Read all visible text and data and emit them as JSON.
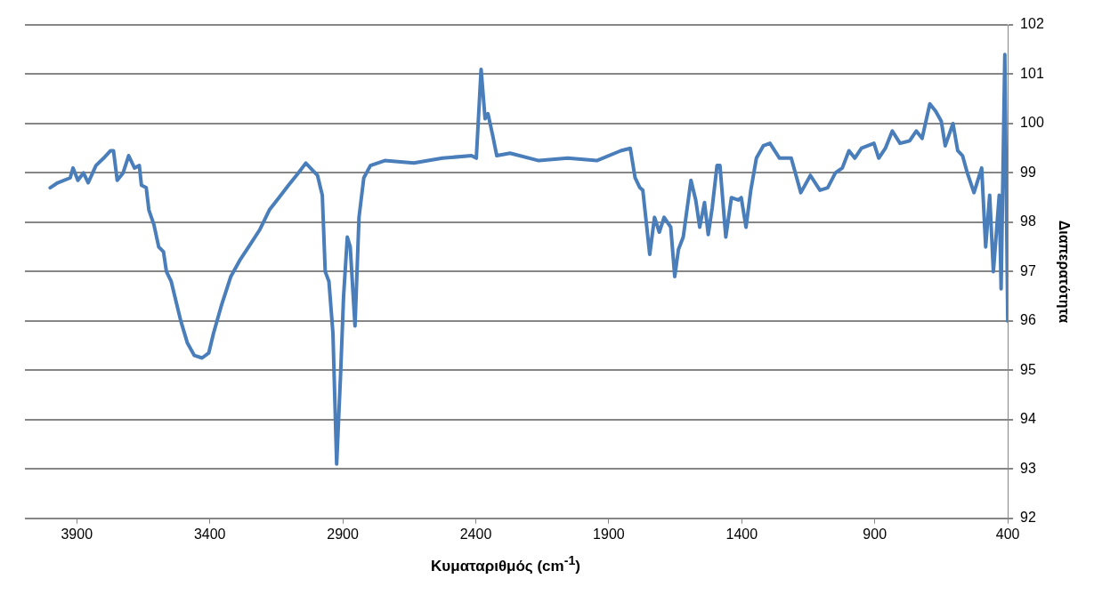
{
  "chart_data": {
    "type": "line",
    "xlabel": "Κυματαριθμός (cm$^{-1}$)",
    "ylabel": "Διαπερατότητα",
    "xlim": [
      4095,
      400
    ],
    "xticks": [
      3900,
      3400,
      2900,
      2400,
      1900,
      1400,
      900,
      400
    ],
    "ylim": [
      92,
      102
    ],
    "yticks": [
      92,
      93,
      94,
      95,
      96,
      97,
      98,
      99,
      100,
      101,
      102
    ],
    "grid": "y",
    "marker": "none",
    "series": [
      {
        "color": "#4a7ebb",
        "x": [
          4000,
          3972,
          3925,
          3914,
          3896,
          3875,
          3857,
          3828,
          3799,
          3773,
          3762,
          3748,
          3726,
          3705,
          3683,
          3665,
          3657,
          3639,
          3629,
          3610,
          3592,
          3574,
          3563,
          3545,
          3527,
          3509,
          3484,
          3458,
          3429,
          3404,
          3386,
          3357,
          3321,
          3285,
          3248,
          3212,
          3176,
          3140,
          3104,
          3067,
          3039,
          3013,
          2995,
          2977,
          2966,
          2952,
          2937,
          2923,
          2908,
          2897,
          2883,
          2872,
          2854,
          2839,
          2821,
          2796,
          2742,
          2633,
          2525,
          2416,
          2398,
          2380,
          2365,
          2354,
          2336,
          2321,
          2271,
          2163,
          2054,
          1945,
          1855,
          1819,
          1801,
          1783,
          1772,
          1746,
          1728,
          1710,
          1692,
          1667,
          1652,
          1638,
          1620,
          1591,
          1573,
          1558,
          1540,
          1526,
          1511,
          1493,
          1482,
          1460,
          1439,
          1413,
          1402,
          1384,
          1366,
          1345,
          1319,
          1294,
          1258,
          1214,
          1178,
          1142,
          1106,
          1077,
          1048,
          1022,
          997,
          975,
          950,
          903,
          885,
          860,
          834,
          805,
          769,
          744,
          722,
          693,
          671,
          650,
          635,
          606,
          588,
          570,
          552,
          527,
          498,
          483,
          468,
          454,
          432,
          425,
          411,
          400
        ],
        "values": [
          98.7,
          98.8,
          98.9,
          99.1,
          98.85,
          99.0,
          98.8,
          99.15,
          99.3,
          99.45,
          99.45,
          98.85,
          99.0,
          99.35,
          99.1,
          99.15,
          98.75,
          98.7,
          98.25,
          97.95,
          97.5,
          97.4,
          97.0,
          96.8,
          96.4,
          96.0,
          95.55,
          95.3,
          95.25,
          95.35,
          95.75,
          96.3,
          96.9,
          97.25,
          97.55,
          97.85,
          98.25,
          98.5,
          98.75,
          99.0,
          99.2,
          99.05,
          98.95,
          98.55,
          97.0,
          96.8,
          95.75,
          93.1,
          94.95,
          96.5,
          97.7,
          97.5,
          95.9,
          98.1,
          98.9,
          99.15,
          99.25,
          99.2,
          99.3,
          99.35,
          99.3,
          101.1,
          100.1,
          100.2,
          99.75,
          99.35,
          99.4,
          99.25,
          99.3,
          99.25,
          99.45,
          99.5,
          98.9,
          98.7,
          98.65,
          97.35,
          98.1,
          97.8,
          98.1,
          97.9,
          96.9,
          97.45,
          97.7,
          98.85,
          98.45,
          97.9,
          98.4,
          97.75,
          98.3,
          99.15,
          99.15,
          97.7,
          98.5,
          98.45,
          98.5,
          97.9,
          98.65,
          99.3,
          99.55,
          99.6,
          99.3,
          99.3,
          98.6,
          98.95,
          98.65,
          98.7,
          99.0,
          99.1,
          99.45,
          99.3,
          99.5,
          99.6,
          99.3,
          99.5,
          99.85,
          99.6,
          99.65,
          99.85,
          99.7,
          100.4,
          100.25,
          100.05,
          99.55,
          100.0,
          99.45,
          99.35,
          99.0,
          98.6,
          99.1,
          97.5,
          98.55,
          97.0,
          98.55,
          96.65,
          101.4,
          96.0
        ]
      }
    ]
  }
}
